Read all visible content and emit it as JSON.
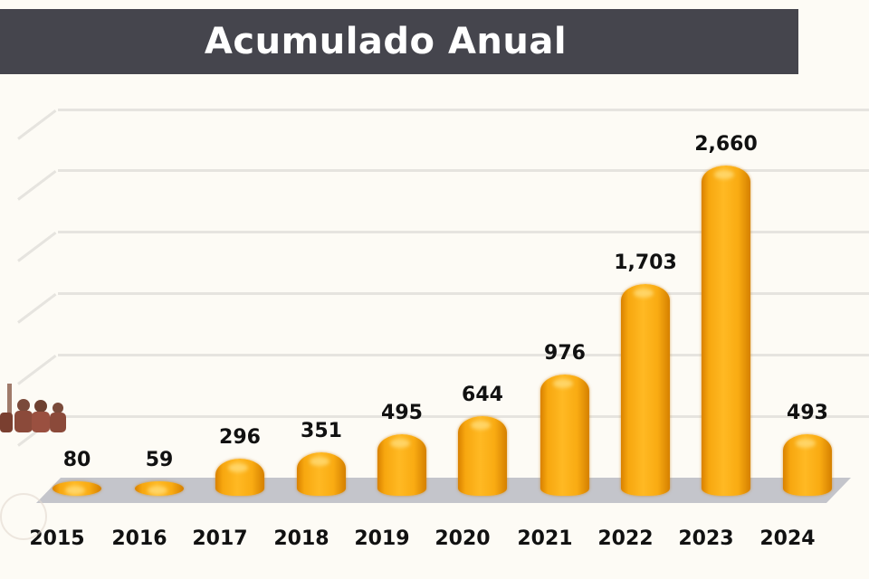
{
  "title": "Acumulado Anual",
  "colors": {
    "title_bg": "#45454d",
    "bar": "#f9ab12",
    "floor": "#c4c5cb",
    "background": "#fdfbf5"
  },
  "bars": [
    {
      "year": "2015",
      "label": "80"
    },
    {
      "year": "2016",
      "label": "59"
    },
    {
      "year": "2017",
      "label": "296"
    },
    {
      "year": "2018",
      "label": "351"
    },
    {
      "year": "2019",
      "label": "495"
    },
    {
      "year": "2020",
      "label": "644"
    },
    {
      "year": "2021",
      "label": "976"
    },
    {
      "year": "2022",
      "label": "1,703"
    },
    {
      "year": "2023",
      "label": "2,660"
    },
    {
      "year": "2024",
      "label": "493"
    }
  ],
  "chart_data": {
    "type": "bar",
    "title": "Acumulado Anual",
    "categories": [
      "2015",
      "2016",
      "2017",
      "2018",
      "2019",
      "2020",
      "2021",
      "2022",
      "2023",
      "2024"
    ],
    "values": [
      80,
      59,
      296,
      351,
      495,
      644,
      976,
      1703,
      2660,
      493
    ],
    "xlabel": "",
    "ylabel": "",
    "ylim": [
      0,
      3000
    ],
    "grid": true,
    "legend": null,
    "style": "3d-cylinder",
    "data_labels": true
  }
}
